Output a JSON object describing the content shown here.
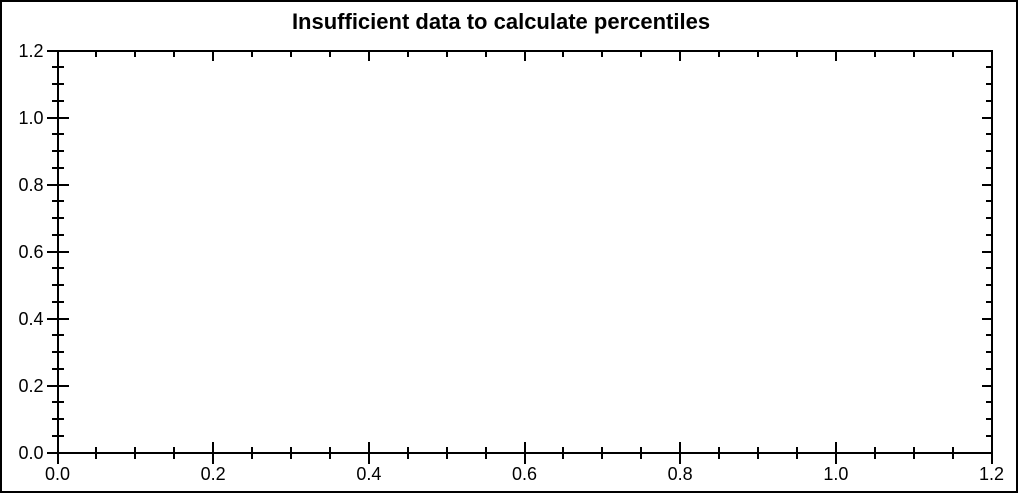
{
  "chart_data": {
    "type": "scatter",
    "title": "Insufficient data to calculate percentiles",
    "series": [],
    "xlabel": "",
    "ylabel": "",
    "xlim": [
      0.0,
      1.2
    ],
    "ylim": [
      0.0,
      1.2
    ],
    "x_ticks": [
      0.0,
      0.2,
      0.4,
      0.6,
      0.8,
      1.0,
      1.2
    ],
    "x_tick_labels": [
      "0.0",
      "0.2",
      "0.4",
      "0.6",
      "0.8",
      "1.0",
      "1.2"
    ],
    "y_ticks": [
      0.0,
      0.2,
      0.4,
      0.6,
      0.8,
      1.0,
      1.2
    ],
    "y_tick_labels": [
      "0.0",
      "0.2",
      "0.4",
      "0.6",
      "0.8",
      "1.0",
      "1.2"
    ],
    "minor_tick_interval": 0.05,
    "grid": false,
    "legend": null,
    "frame": true,
    "colors": {
      "axis": "#000000",
      "text": "#000000",
      "background": "#ffffff"
    }
  }
}
